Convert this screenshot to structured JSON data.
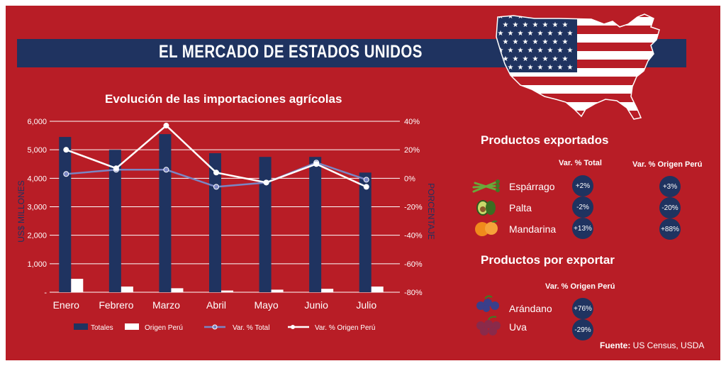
{
  "header": {
    "title": "EL MERCADO DE ESTADOS UNIDOS"
  },
  "chart_data": {
    "type": "bar+line",
    "title": "Evolución de las importaciones agrícolas",
    "categories": [
      "Enero",
      "Febrero",
      "Marzo",
      "Abril",
      "Mayo",
      "Junio",
      "Julio"
    ],
    "series": [
      {
        "name": "Totales",
        "kind": "bar",
        "axis": "left",
        "values": [
          5450,
          5000,
          5550,
          4880,
          4750,
          4750,
          4200
        ]
      },
      {
        "name": "Origen Perú",
        "kind": "bar",
        "axis": "left",
        "values": [
          470,
          200,
          140,
          60,
          90,
          120,
          200
        ]
      },
      {
        "name": "Var. % Total",
        "kind": "line",
        "axis": "right",
        "values": [
          3,
          6,
          6,
          -6,
          -3,
          11,
          -1
        ]
      },
      {
        "name": "Var. % Origen Perú",
        "kind": "line",
        "axis": "right",
        "values": [
          20,
          7,
          37,
          4,
          -3,
          10,
          -6
        ]
      }
    ],
    "ylabel": "US$ MILLONES",
    "y2label": "PORCENTAJE",
    "ylim": [
      0,
      6000
    ],
    "y2lim": [
      -80,
      40
    ],
    "yticks": [
      "-",
      "1,000",
      "2,000",
      "3,000",
      "4,000",
      "5,000",
      "6,000"
    ],
    "y2ticks": [
      "-80%",
      "-60%",
      "-40%",
      "-20%",
      "0%",
      "20%",
      "40%"
    ],
    "colors": {
      "totales": "#1f3360",
      "origen": "#ffffff",
      "var_total": "#7a86c4",
      "var_origen": "#ffffff"
    }
  },
  "exportados": {
    "title": "Productos exportados",
    "col_total": "Var. % Total",
    "col_origen": "Var. % Origen Perú",
    "items": [
      {
        "name": "Espárrago",
        "icon": "asparagus-icon",
        "total": "+2%",
        "origen": "+3%"
      },
      {
        "name": "Palta",
        "icon": "avocado-icon",
        "total": "-2%",
        "origen": "-20%"
      },
      {
        "name": "Mandarina",
        "icon": "mandarin-icon",
        "total": "+13%",
        "origen": "+88%"
      }
    ]
  },
  "por_exportar": {
    "title": "Productos por exportar",
    "col_origen": "Var. % Origen Perú",
    "items": [
      {
        "name": "Arándano",
        "icon": "blueberry-icon",
        "origen": "+76%"
      },
      {
        "name": "Uva",
        "icon": "grape-icon",
        "origen": "-29%"
      }
    ]
  },
  "source": {
    "label": "Fuente:",
    "text": " US Census, USDA"
  }
}
